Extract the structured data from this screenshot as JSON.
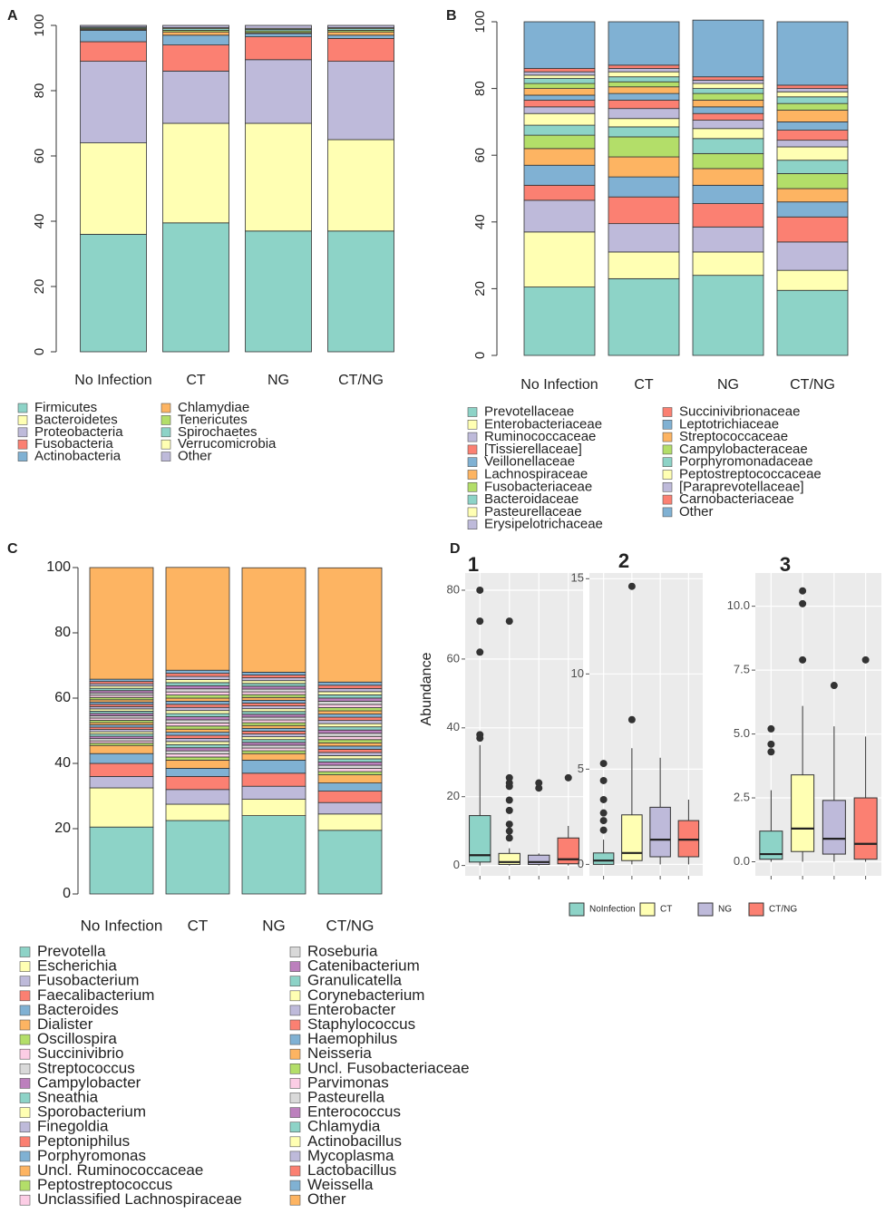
{
  "chart_data": [
    {
      "type": "bar",
      "panel": "A",
      "categories": [
        "No Infection",
        "CT",
        "NG",
        "CT/NG"
      ],
      "ylim": [
        0,
        100
      ],
      "yticks": [
        0,
        20,
        40,
        60,
        80,
        100
      ],
      "series": [
        {
          "name": "Firmicutes",
          "color": "#8dd3c7",
          "values": [
            36,
            39.5,
            37,
            37
          ]
        },
        {
          "name": "Bacteroidetes",
          "color": "#ffffb3",
          "values": [
            28,
            30.5,
            33,
            28
          ]
        },
        {
          "name": "Proteobacteria",
          "color": "#bebada",
          "values": [
            25,
            16,
            19.5,
            24
          ]
        },
        {
          "name": "Fusobacteria",
          "color": "#fb8072",
          "values": [
            6,
            8,
            7,
            7
          ]
        },
        {
          "name": "Actinobacteria",
          "color": "#80b1d3",
          "values": [
            3.5,
            3,
            1,
            1
          ]
        },
        {
          "name": "Chlamydiae",
          "color": "#fdb462",
          "values": [
            0.3,
            1,
            0.3,
            1
          ]
        },
        {
          "name": "Tenericutes",
          "color": "#b3de69",
          "values": [
            0.3,
            0.5,
            0.5,
            0.5
          ]
        },
        {
          "name": "Spirochaetes",
          "color": "#8dd3c7",
          "values": [
            0.3,
            0.5,
            0.5,
            0.5
          ]
        },
        {
          "name": "Verrucomicrobia",
          "color": "#ffffb3",
          "values": [
            0.1,
            0.3,
            0.3,
            0.3
          ]
        },
        {
          "name": "Other",
          "color": "#bebada",
          "values": [
            0.5,
            0.7,
            0.9,
            0.7
          ]
        }
      ]
    },
    {
      "type": "bar",
      "panel": "B",
      "categories": [
        "No Infection",
        "CT",
        "NG",
        "CT/NG"
      ],
      "ylim": [
        0,
        100
      ],
      "yticks": [
        0,
        20,
        40,
        60,
        80,
        100
      ],
      "series": [
        {
          "name": "Prevotellaceae",
          "color": "#8dd3c7",
          "values": [
            20.5,
            23,
            24,
            19.5
          ]
        },
        {
          "name": "Enterobacteriaceae",
          "color": "#ffffb3",
          "values": [
            16.5,
            8,
            7,
            6
          ]
        },
        {
          "name": "Ruminococcaceae",
          "color": "#bebada",
          "values": [
            9.5,
            8.5,
            7.5,
            8.5
          ]
        },
        {
          "name": "[Tissierellaceae]",
          "color": "#fb8072",
          "values": [
            4.5,
            8,
            7,
            7.5
          ]
        },
        {
          "name": "Veillonellaceae",
          "color": "#80b1d3",
          "values": [
            6,
            6,
            5.5,
            4.5
          ]
        },
        {
          "name": "Lachnospiraceae",
          "color": "#fdb462",
          "values": [
            5,
            6,
            5,
            4
          ]
        },
        {
          "name": "Fusobacteriaceae",
          "color": "#b3de69",
          "values": [
            4,
            6,
            4.5,
            4.5
          ]
        },
        {
          "name": "Bacteroidaceae",
          "color": "#8dd3c7",
          "values": [
            3,
            3,
            4.5,
            4
          ]
        },
        {
          "name": "Pasteurellaceae",
          "color": "#ffffb3",
          "values": [
            3.5,
            2.5,
            3,
            4
          ]
        },
        {
          "name": "Erysipelotrichaceae",
          "color": "#bebada",
          "values": [
            2,
            3,
            2.5,
            2
          ]
        },
        {
          "name": "Succinivibrionaceae",
          "color": "#fb8072",
          "values": [
            2,
            2.5,
            2,
            3
          ]
        },
        {
          "name": "Leptotrichiaceae",
          "color": "#80b1d3",
          "values": [
            1.5,
            2,
            2,
            2.5
          ]
        },
        {
          "name": "Streptococcaceae",
          "color": "#fdb462",
          "values": [
            2,
            2,
            2,
            3.5
          ]
        },
        {
          "name": "Campylobacteraceae",
          "color": "#b3de69",
          "values": [
            1.5,
            1.5,
            2,
            2
          ]
        },
        {
          "name": "Porphyromonadaceae",
          "color": "#8dd3c7",
          "values": [
            1.5,
            1.5,
            1.5,
            2
          ]
        },
        {
          "name": "Peptostreptococcaceae",
          "color": "#ffffb3",
          "values": [
            1,
            1.5,
            1.5,
            1.5
          ]
        },
        {
          "name": "[Paraprevotellaceae]",
          "color": "#bebada",
          "values": [
            1,
            1,
            1,
            1
          ]
        },
        {
          "name": "Carnobacteriaceae",
          "color": "#fb8072",
          "values": [
            1,
            1,
            1,
            1
          ]
        },
        {
          "name": "Other",
          "color": "#80b1d3",
          "values": [
            14,
            13,
            17,
            19
          ]
        }
      ]
    },
    {
      "type": "bar",
      "panel": "C",
      "categories": [
        "No Infection",
        "CT",
        "NG",
        "CT/NG"
      ],
      "ylim": [
        0,
        100
      ],
      "yticks": [
        0,
        20,
        40,
        60,
        80,
        100
      ],
      "series": [
        {
          "name": "Prevotella",
          "color": "#8dd3c7",
          "values": [
            20.5,
            22.5,
            24,
            19.5
          ]
        },
        {
          "name": "Escherichia",
          "color": "#ffffb3",
          "values": [
            12,
            5,
            5,
            5
          ]
        },
        {
          "name": "Fusobacterium",
          "color": "#bebada",
          "values": [
            3.5,
            4.5,
            4,
            3.5
          ]
        },
        {
          "name": "Faecalibacterium",
          "color": "#fb8072",
          "values": [
            4,
            4,
            4,
            3.5
          ]
        },
        {
          "name": "Bacteroides",
          "color": "#80b1d3",
          "values": [
            3,
            2.5,
            4,
            2.5
          ]
        },
        {
          "name": "Dialister",
          "color": "#fdb462",
          "values": [
            2.5,
            2.5,
            2,
            2.5
          ]
        },
        {
          "name": "Oscillospira",
          "color": "#b3de69",
          "values": [
            0.7,
            0.95,
            0.86,
            0.98
          ]
        },
        {
          "name": "Succinivibrio",
          "color": "#fccde5",
          "values": [
            0.7,
            0.95,
            0.86,
            0.98
          ]
        },
        {
          "name": "Streptococcus",
          "color": "#d9d9d9",
          "values": [
            0.7,
            0.95,
            0.86,
            0.98
          ]
        },
        {
          "name": "Campylobacter",
          "color": "#bc80bd",
          "values": [
            0.7,
            0.95,
            0.86,
            0.98
          ]
        },
        {
          "name": "Sneathia",
          "color": "#8dd3c7",
          "values": [
            0.7,
            0.95,
            0.86,
            0.98
          ]
        },
        {
          "name": "Sporobacterium",
          "color": "#ffffb3",
          "values": [
            0.7,
            0.95,
            0.86,
            0.98
          ]
        },
        {
          "name": "Finegoldia",
          "color": "#bebada",
          "values": [
            0.7,
            0.95,
            0.86,
            0.98
          ]
        },
        {
          "name": "Peptoniphilus",
          "color": "#fb8072",
          "values": [
            0.7,
            0.95,
            0.86,
            0.98
          ]
        },
        {
          "name": "Porphyromonas",
          "color": "#80b1d3",
          "values": [
            0.7,
            0.95,
            0.86,
            0.98
          ]
        },
        {
          "name": "Uncl. Ruminococcaceae",
          "color": "#fdb462",
          "values": [
            0.7,
            0.95,
            0.86,
            0.98
          ]
        },
        {
          "name": "Peptostreptococcus",
          "color": "#b3de69",
          "values": [
            0.7,
            0.95,
            0.86,
            0.98
          ]
        },
        {
          "name": "Unclassified Lachnospiraceae",
          "color": "#fccde5",
          "values": [
            0.7,
            0.95,
            0.86,
            0.98
          ]
        },
        {
          "name": "Roseburia",
          "color": "#d9d9d9",
          "values": [
            0.7,
            0.95,
            0.86,
            0.98
          ]
        },
        {
          "name": "Catenibacterium",
          "color": "#bc80bd",
          "values": [
            0.7,
            0.95,
            0.86,
            0.98
          ]
        },
        {
          "name": "Granulicatella",
          "color": "#8dd3c7",
          "values": [
            0.7,
            0.95,
            0.86,
            0.98
          ]
        },
        {
          "name": "Corynebacterium",
          "color": "#ffffb3",
          "values": [
            0.7,
            0.95,
            0.86,
            0.98
          ]
        },
        {
          "name": "Enterobacter",
          "color": "#bebada",
          "values": [
            0.7,
            0.95,
            0.86,
            0.98
          ]
        },
        {
          "name": "Staphylococcus",
          "color": "#fb8072",
          "values": [
            0.7,
            0.95,
            0.86,
            0.98
          ]
        },
        {
          "name": "Haemophilus",
          "color": "#80b1d3",
          "values": [
            0.7,
            0.95,
            0.86,
            0.98
          ]
        },
        {
          "name": "Neisseria",
          "color": "#fdb462",
          "values": [
            0.7,
            0.95,
            0.86,
            0.98
          ]
        },
        {
          "name": "Uncl. Fusobacteriaceae",
          "color": "#b3de69",
          "values": [
            0.7,
            0.95,
            0.86,
            0.98
          ]
        },
        {
          "name": "Parvimonas",
          "color": "#fccde5",
          "values": [
            0.7,
            0.95,
            0.86,
            0.98
          ]
        },
        {
          "name": "Pasteurella",
          "color": "#d9d9d9",
          "values": [
            0.7,
            0.95,
            0.86,
            0.98
          ]
        },
        {
          "name": "Enterococcus",
          "color": "#bc80bd",
          "values": [
            0.7,
            0.95,
            0.86,
            0.98
          ]
        },
        {
          "name": "Chlamydia",
          "color": "#8dd3c7",
          "values": [
            0.7,
            0.95,
            0.86,
            0.98
          ]
        },
        {
          "name": "Actinobacillus",
          "color": "#ffffb3",
          "values": [
            0.7,
            0.95,
            0.86,
            0.98
          ]
        },
        {
          "name": "Mycoplasma",
          "color": "#bebada",
          "values": [
            0.7,
            0.95,
            0.86,
            0.98
          ]
        },
        {
          "name": "Lactobacillus",
          "color": "#fb8072",
          "values": [
            0.7,
            0.95,
            0.86,
            0.98
          ]
        },
        {
          "name": "Weissella",
          "color": "#80b1d3",
          "values": [
            0.7,
            0.95,
            0.86,
            0.98
          ]
        },
        {
          "name": "Other",
          "color": "#fdb462",
          "values": [
            34.2,
            31.5,
            32,
            35
          ]
        }
      ]
    },
    {
      "type": "box",
      "panel": "D",
      "label": "1",
      "ylabel": "Abundance",
      "categories": [
        "NoInfection",
        "CT",
        "NG",
        "CT/NG"
      ],
      "colors": [
        "#8dd3c7",
        "#ffffb3",
        "#bebada",
        "#fb8072"
      ],
      "ylim": [
        -3,
        85
      ],
      "yticks": [
        0,
        20,
        40,
        60,
        80
      ],
      "boxes": [
        {
          "min": 0,
          "q1": 1,
          "median": 3,
          "q3": 14.5,
          "max": 35,
          "outliers": [
            37,
            38,
            62,
            71,
            80
          ]
        },
        {
          "min": 0,
          "q1": 0.3,
          "median": 1,
          "q3": 3.5,
          "max": 5,
          "outliers": [
            8,
            10,
            12,
            16,
            19,
            23,
            24,
            25.5,
            71
          ]
        },
        {
          "min": 0,
          "q1": 0.3,
          "median": 1,
          "q3": 3,
          "max": 3.5,
          "outliers": [
            22.5,
            24
          ]
        },
        {
          "min": 0,
          "q1": 0.5,
          "median": 1.8,
          "q3": 8,
          "max": 11.5,
          "outliers": [
            25.5
          ]
        }
      ]
    },
    {
      "type": "box",
      "label": "2",
      "ylim": [
        -0.6,
        15.3
      ],
      "yticks": [
        0,
        5,
        10,
        15
      ],
      "boxes": [
        {
          "min": 0,
          "q1": 0,
          "median": 0.2,
          "q3": 0.6,
          "max": 1.3,
          "outliers": [
            1.8,
            2.3,
            2.7,
            3.4,
            4.4,
            5.3
          ]
        },
        {
          "min": 0,
          "q1": 0.2,
          "median": 0.6,
          "q3": 2.6,
          "max": 6.1,
          "outliers": [
            7.6,
            14.6
          ]
        },
        {
          "min": 0,
          "q1": 0.4,
          "median": 1.3,
          "q3": 3,
          "max": 5.6,
          "outliers": []
        },
        {
          "min": 0,
          "q1": 0.4,
          "median": 1.3,
          "q3": 2.3,
          "max": 3.4,
          "outliers": []
        }
      ]
    },
    {
      "type": "box",
      "label": "3",
      "ylim": [
        -0.55,
        11.3
      ],
      "yticks": [
        {
          "value": 0,
          "label": "0.0"
        },
        2.5,
        {
          "value": 5,
          "label": "5.0"
        },
        7.5,
        {
          "value": 10,
          "label": "10.0"
        }
      ],
      "boxes": [
        {
          "min": 0,
          "q1": 0.1,
          "median": 0.3,
          "q3": 1.2,
          "max": 2.8,
          "outliers": [
            4.3,
            4.6,
            5.2
          ]
        },
        {
          "min": 0,
          "q1": 0.4,
          "median": 1.3,
          "q3": 3.4,
          "max": 6.1,
          "outliers": [
            7.9,
            10.1,
            10.6
          ]
        },
        {
          "min": 0,
          "q1": 0.3,
          "median": 0.9,
          "q3": 2.4,
          "max": 5.3,
          "outliers": [
            6.9
          ]
        },
        {
          "min": 0,
          "q1": 0.1,
          "median": 0.7,
          "q3": 2.5,
          "max": 4.9,
          "outliers": [
            7.9
          ]
        }
      ]
    }
  ]
}
